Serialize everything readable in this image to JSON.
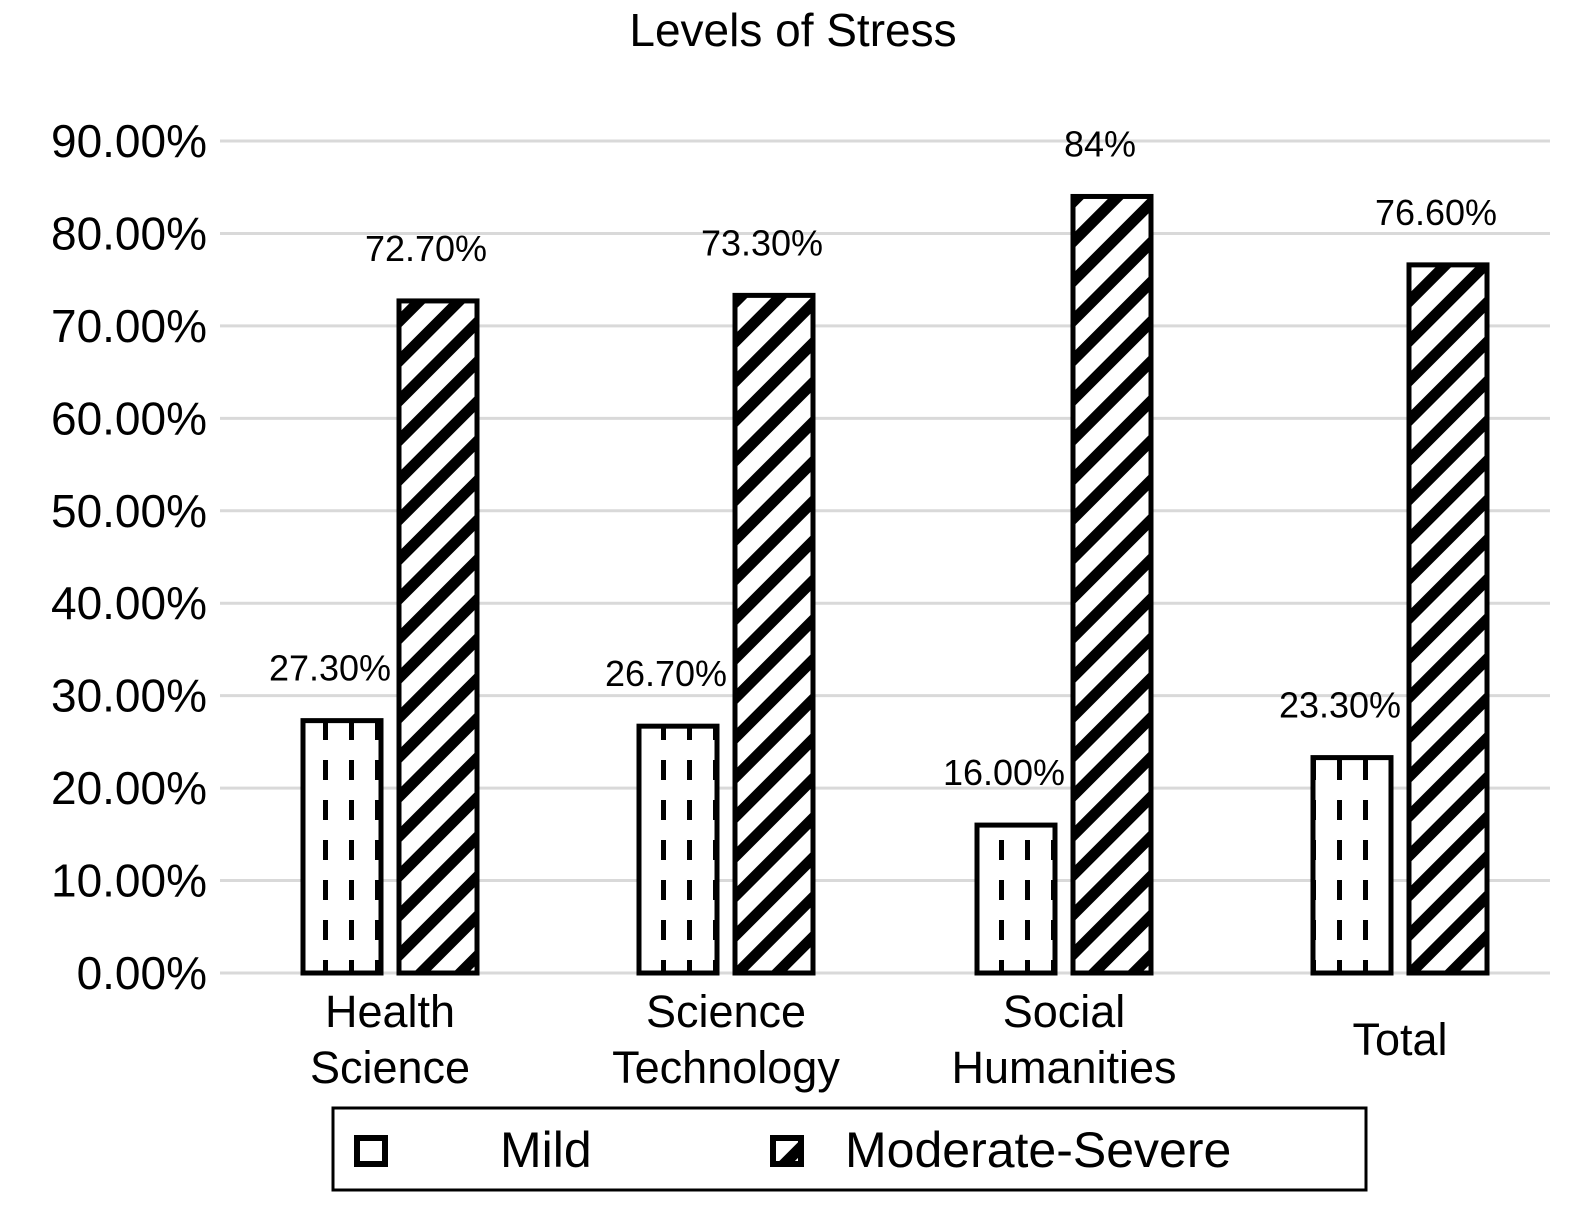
{
  "chart_data": {
    "type": "bar",
    "title": "Levels of Stress",
    "categories": [
      [
        "Health",
        "Science"
      ],
      [
        "Science",
        "Technology"
      ],
      [
        "Social",
        "Humanities"
      ],
      [
        "Total"
      ]
    ],
    "series": [
      {
        "name": "Mild",
        "values": [
          27.3,
          26.7,
          16.0,
          23.3
        ],
        "labels": [
          "27.30%",
          "26.70%",
          "16.00%",
          "23.30%"
        ],
        "pattern": "dashed-vertical"
      },
      {
        "name": "Moderate-Severe",
        "values": [
          72.7,
          73.3,
          84,
          76.6
        ],
        "labels": [
          "72.70%",
          "73.30%",
          "84%",
          "76.60%"
        ],
        "pattern": "diagonal-stripes"
      }
    ],
    "yticks": [
      "0.00%",
      "10.00%",
      "20.00%",
      "30.00%",
      "40.00%",
      "50.00%",
      "60.00%",
      "70.00%",
      "80.00%",
      "90.00%"
    ],
    "ylim": [
      0,
      90
    ],
    "grid": true,
    "legend": "bottom",
    "colors": {
      "grid": "#d9d9d9",
      "stroke": "#000000"
    }
  }
}
